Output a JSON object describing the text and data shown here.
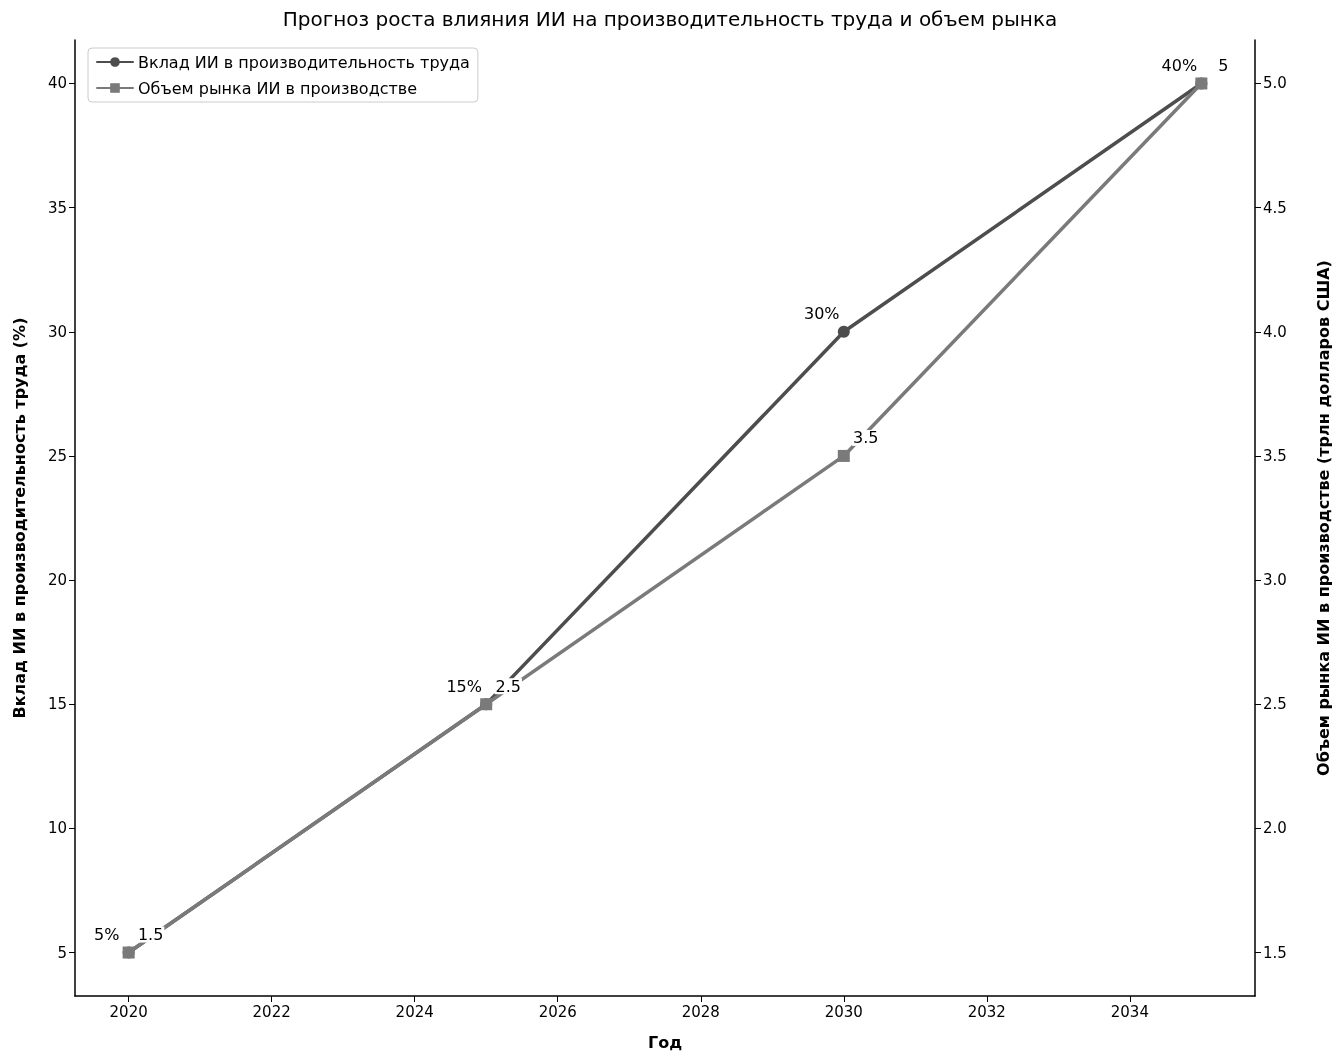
{
  "chart_data": {
    "type": "line",
    "title": "Прогноз роста влияния ИИ на производительность труда и объем рынка",
    "xlabel": "Год",
    "ylabel": "Вклад ИИ в производительность труда (%)",
    "y2label": "Объем рынка ИИ в производстве (трлн долларов США)",
    "x": [
      2020,
      2025,
      2030,
      2035
    ],
    "series": [
      {
        "name": "Вклад ИИ в производительность труда",
        "color": "#4d4d4d",
        "marker": "circle",
        "values": [
          5,
          15,
          30,
          40
        ],
        "value_labels": [
          "5%",
          "15%",
          "30%",
          "40%"
        ]
      },
      {
        "name": "Объем рынка ИИ в производстве",
        "color": "#7a7a7a",
        "marker": "square",
        "axis": "y2",
        "values": [
          1.5,
          2.5,
          3.5,
          5.0
        ],
        "value_labels": [
          "1.5",
          "2.5",
          "3.5",
          "5"
        ]
      }
    ],
    "xlim": [
      2019.25,
      2035.75
    ],
    "xticks": [
      2020,
      2022,
      2024,
      2026,
      2028,
      2030,
      2032,
      2034
    ],
    "ylim": [
      3.25,
      41.75
    ],
    "yticks": [
      5,
      10,
      15,
      20,
      25,
      30,
      35,
      40
    ],
    "y2lim": [
      1.325,
      5.175
    ],
    "y2ticks": [
      1.5,
      {
        "value": 2,
        "label": "2.0"
      },
      2.5,
      {
        "value": 3,
        "label": "3.0"
      },
      3.5,
      {
        "value": 4,
        "label": "4.0"
      },
      4.5,
      {
        "value": 5,
        "label": "5.0"
      }
    ],
    "legend": "top left",
    "grid": false,
    "line_style": "solid"
  }
}
